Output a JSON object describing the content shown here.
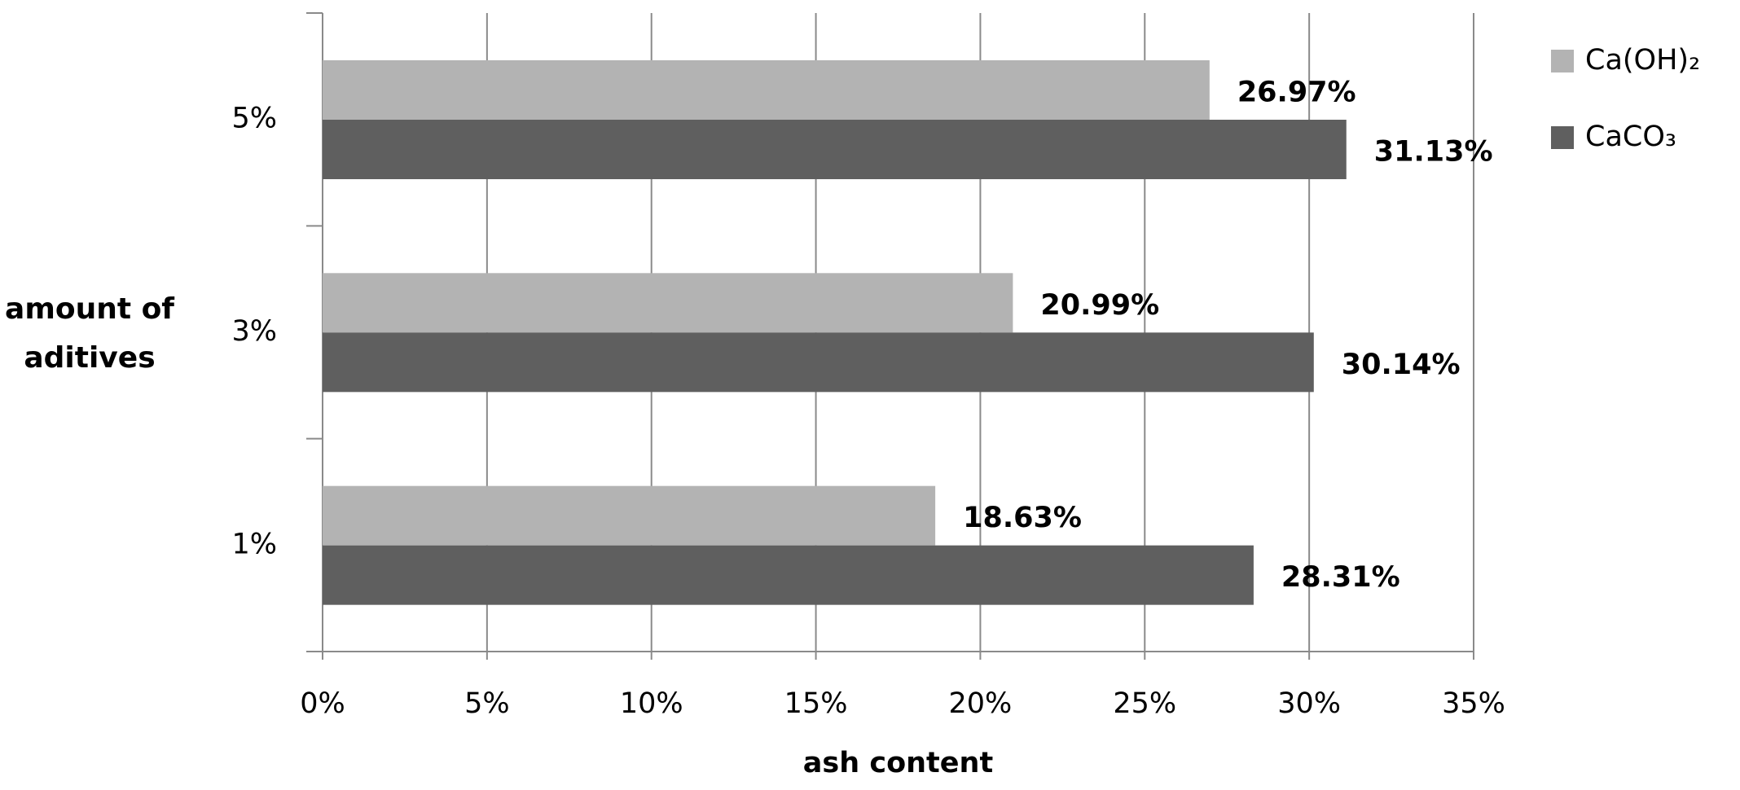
{
  "chart_data": {
    "type": "hbar",
    "categories": [
      "1%",
      "3%",
      "5%"
    ],
    "series": [
      {
        "name": "Ca(OH)₂",
        "color": "#b3b3b3",
        "values": [
          18.63,
          20.99,
          26.97
        ],
        "value_labels": [
          "18.63%",
          "20.99%",
          "26.97%"
        ]
      },
      {
        "name": "CaCO₃",
        "color": "#5f5f5f",
        "values": [
          28.31,
          30.14,
          31.13
        ],
        "value_labels": [
          "28.31%",
          "30.14%",
          "31.13%"
        ]
      }
    ],
    "xlabel": "ash content",
    "ylabel": "amount of aditives",
    "xlim": [
      0,
      35
    ],
    "xticks": [
      {
        "value": 0,
        "label": "0%"
      },
      {
        "value": 5,
        "label": "5%"
      },
      {
        "value": 10,
        "label": "10%"
      },
      {
        "value": 15,
        "label": "15%"
      },
      {
        "value": 20,
        "label": "20%"
      },
      {
        "value": 25,
        "label": "25%"
      },
      {
        "value": 30,
        "label": "30%"
      },
      {
        "value": 35,
        "label": "35%"
      }
    ],
    "grid": true,
    "legend": "top-right"
  }
}
